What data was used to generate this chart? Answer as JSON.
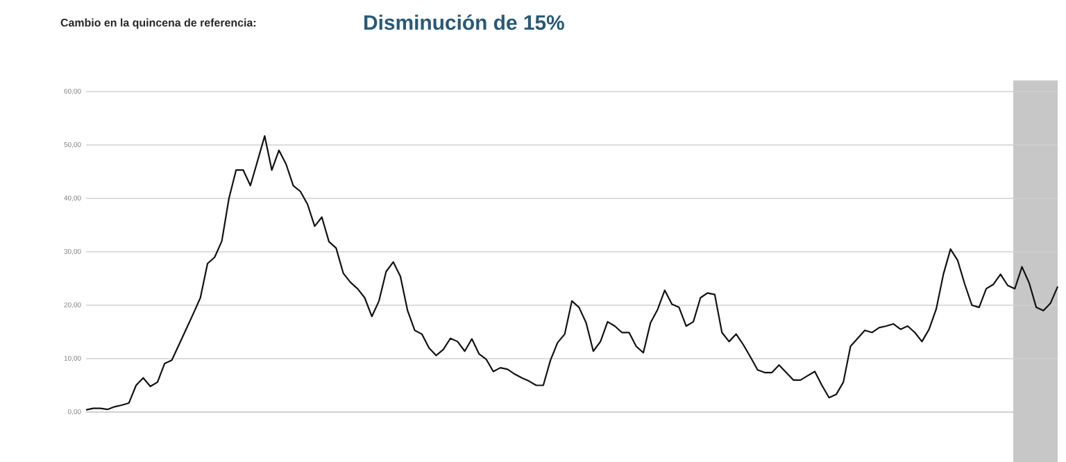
{
  "chart_data": {
    "type": "line",
    "title": "Cambio en la quincena de referencia:",
    "subtitle": "Disminución de 15%",
    "categories": [
      null,
      null,
      null,
      null,
      null,
      null,
      null,
      null,
      null,
      null,
      null,
      null,
      null,
      null,
      null,
      null,
      null,
      null,
      null,
      null,
      null,
      null,
      null,
      null,
      null,
      null,
      null,
      null,
      null,
      null,
      null,
      null,
      null,
      null,
      null,
      null,
      null,
      null,
      null,
      null,
      null,
      null,
      null,
      null,
      null,
      null,
      null,
      null,
      null,
      null,
      null,
      null,
      null,
      null,
      null,
      null,
      null,
      null,
      null,
      null,
      null,
      null,
      null,
      null,
      null,
      null,
      null,
      null,
      null,
      null,
      null,
      null,
      null,
      null,
      null,
      null,
      null,
      null,
      null,
      null,
      null,
      null,
      null,
      null,
      null,
      null,
      null,
      null,
      null,
      null,
      null,
      null,
      null,
      null,
      null,
      null,
      null,
      null,
      null,
      null,
      null,
      null,
      null,
      null,
      null,
      null,
      null,
      null,
      null,
      null,
      null,
      null,
      null,
      null,
      null,
      null,
      null,
      null,
      null,
      null,
      null,
      null,
      null,
      null,
      null,
      null,
      null,
      null,
      null,
      null,
      null,
      null,
      null,
      null,
      null,
      null,
      null
    ],
    "series": [
      {
        "color": "#111111",
        "values": [
          0.4,
          0.7,
          0.7,
          0.5,
          1,
          1.3,
          1.7,
          5,
          6.4,
          4.8,
          5.6,
          9.1,
          9.7,
          12.6,
          15.5,
          18.4,
          21.4,
          27.8,
          29,
          32,
          40,
          45.3,
          45.3,
          42.4,
          47,
          51.7,
          45.3,
          49,
          46.4,
          42.4,
          41.3,
          38.9,
          34.8,
          36.5,
          31.9,
          30.7,
          26,
          24.3,
          23.1,
          21.4,
          17.9,
          20.8,
          26.3,
          28.1,
          25.4,
          19,
          15.3,
          14.6,
          12,
          10.6,
          11.7,
          13.8,
          13.2,
          11.4,
          13.7,
          10.9,
          9.9,
          7.6,
          8.3,
          8,
          7.1,
          6.4,
          5.8,
          5,
          5,
          9.7,
          13,
          14.6,
          20.8,
          19.6,
          16.7,
          11.4,
          13.2,
          16.9,
          16.1,
          14.9,
          14.9,
          12.3,
          11.1,
          16.7,
          19.2,
          22.8,
          20.2,
          19.6,
          16.1,
          16.9,
          21.4,
          22.3,
          22,
          14.9,
          13.2,
          14.6,
          12.6,
          10.3,
          7.9,
          7.4,
          7.4,
          8.8,
          7.4,
          6,
          6,
          6.8,
          7.6,
          5,
          2.7,
          3.3,
          5.6,
          12.3,
          13.8,
          15.3,
          14.9,
          15.8,
          16.1,
          16.5,
          15.5,
          16.1,
          14.9,
          13.2,
          15.5,
          19.3,
          25.8,
          30.5,
          28.4,
          23.9,
          20,
          19.6,
          23.1,
          23.9,
          25.8,
          23.7,
          23.1,
          27.2,
          24.2,
          19.6,
          19,
          20.4,
          23.5
        ]
      }
    ],
    "ylim": [
      0,
      60
    ],
    "yticks": [
      {
        "value": 0,
        "label": "0,00"
      },
      {
        "value": 10,
        "label": "10,00"
      },
      {
        "value": 20,
        "label": "20,00"
      },
      {
        "value": 30,
        "label": "30,00"
      },
      {
        "value": 40,
        "label": "40,00"
      },
      {
        "value": 50,
        "label": "50,00"
      },
      {
        "value": 60,
        "label": "60,00"
      }
    ],
    "grid": "y"
  }
}
